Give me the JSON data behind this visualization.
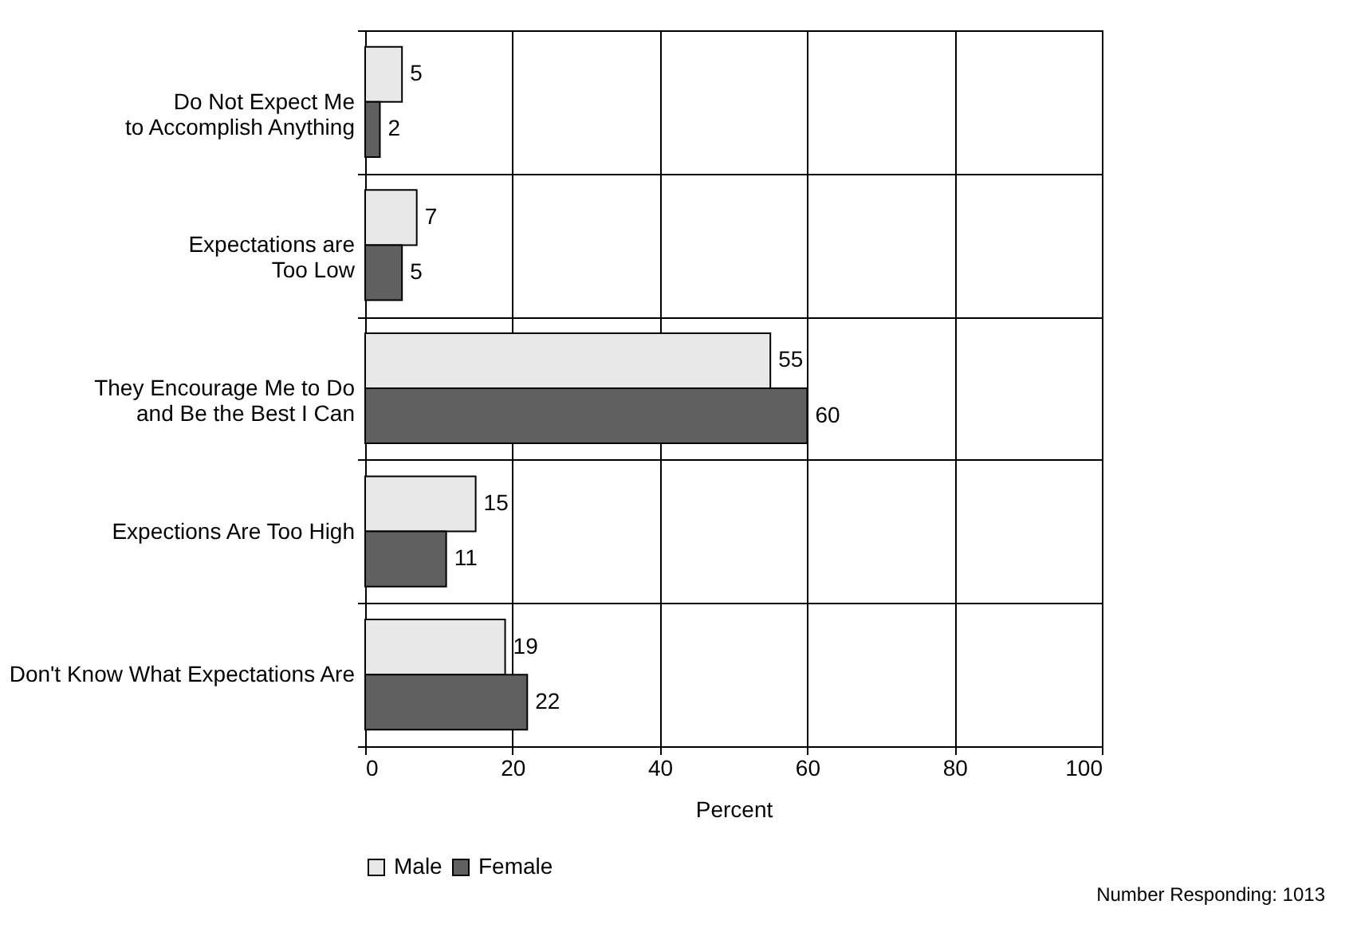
{
  "chart_data": {
    "type": "bar",
    "orientation": "horizontal",
    "xlabel": "Percent",
    "categories": [
      "Do Not Expect Me\nto Accomplish Anything",
      "Expectations are\nToo Low",
      "They Encourage Me to Do\nand Be the Best I Can",
      "Expections Are Too High",
      "Don't Know What Expectations Are"
    ],
    "series": [
      {
        "name": "Male",
        "color": "#e8e8e8",
        "values": [
          5,
          7,
          55,
          15,
          19
        ]
      },
      {
        "name": "Female",
        "color": "#606060",
        "values": [
          2,
          5,
          60,
          11,
          22
        ]
      }
    ],
    "xlim": [
      0,
      100
    ],
    "xticks": [
      0,
      20,
      40,
      60,
      80,
      100
    ],
    "grid": true,
    "data_labels": true,
    "legend": "bottom",
    "annotations": [
      "Number Responding: 1013"
    ]
  }
}
